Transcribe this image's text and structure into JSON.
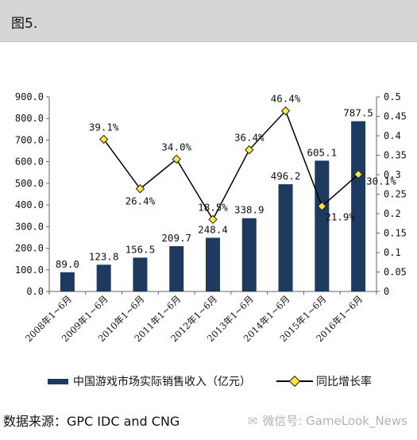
{
  "header": {
    "figure_label": "图5."
  },
  "chart_data": {
    "type": "bar",
    "categories": [
      "2008年1~6月",
      "2009年1~6月",
      "2010年1~6月",
      "2011年1~6月",
      "2012年1~6月",
      "2013年1~6月",
      "2014年1~6月",
      "2015年1~6月",
      "2016年1~6月"
    ],
    "series": [
      {
        "name": "中国游戏市场实际销售收入（亿元）",
        "type": "bar",
        "axis": "left",
        "color": "#1f3a5f",
        "values": [
          89.0,
          123.8,
          156.5,
          209.7,
          248.4,
          338.9,
          496.2,
          605.1,
          787.5
        ],
        "labels": [
          "89.0",
          "123.8",
          "156.5",
          "209.7",
          "248.4",
          "338.9",
          "496.2",
          "605.1",
          "787.5"
        ]
      },
      {
        "name": "同比增长率",
        "type": "line",
        "axis": "right",
        "color": "#000000",
        "marker_color": "#ffeb3b",
        "values": [
          null,
          0.391,
          0.264,
          0.34,
          0.185,
          0.364,
          0.464,
          0.219,
          0.301
        ],
        "labels": [
          "",
          "39.1%",
          "26.4%",
          "34.0%",
          "18.5%",
          "36.4%",
          "46.4%",
          "21.9%",
          "30.1%"
        ]
      }
    ],
    "y_left": {
      "ylim": [
        0,
        900
      ],
      "ticks": [
        "0.0",
        "100.0",
        "200.0",
        "300.0",
        "400.0",
        "500.0",
        "600.0",
        "700.0",
        "800.0",
        "900.0"
      ]
    },
    "y_right": {
      "ylim": [
        0,
        0.5
      ],
      "ticks": [
        "0",
        "0.05",
        "0.1",
        "0.15",
        "0.2",
        "0.25",
        "0.3",
        "0.35",
        "0.4",
        "0.45",
        "0.5"
      ]
    },
    "grid": false,
    "legend_position": "bottom"
  },
  "source": "数据来源：GPC IDC and CNG",
  "watermark": {
    "icon": "wechat-icon",
    "text": "微信号: GameLook_News"
  }
}
